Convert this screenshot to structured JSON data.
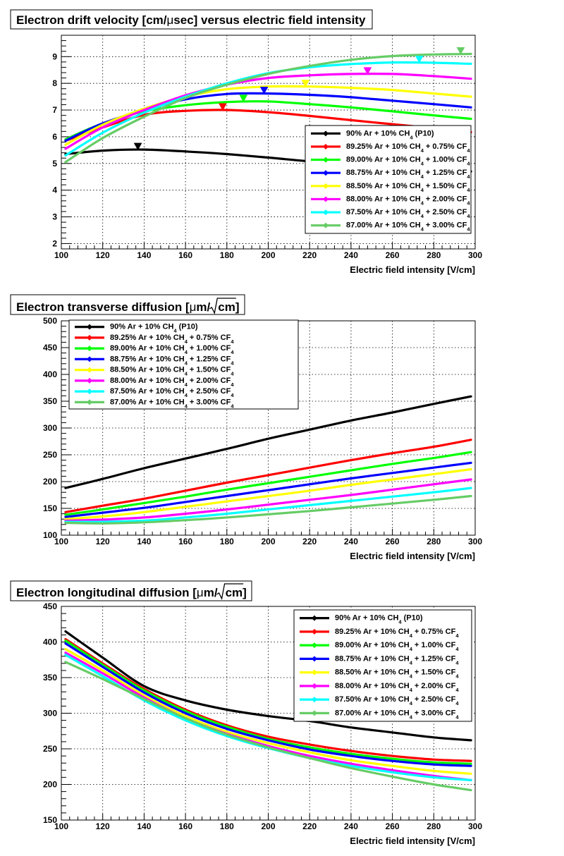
{
  "chart_data": [
    {
      "type": "line",
      "title": "Electron drift velocity [cm/μsec] versus electric field intensity",
      "title_parts": [
        "Electron drift velocity [cm/",
        "μ",
        "sec] versus electric field intensity"
      ],
      "xlabel": "Electric field intensity [V/cm]",
      "ylabel": "",
      "xlim": [
        100,
        300
      ],
      "ylim": [
        1.8,
        9.8
      ],
      "x_ticks": [
        100,
        120,
        140,
        160,
        180,
        200,
        220,
        240,
        260,
        280,
        300
      ],
      "y_ticks": [
        2,
        3,
        4,
        5,
        6,
        7,
        8,
        9
      ],
      "grid": true,
      "legend_position": "bottom-right",
      "x": [
        102,
        120,
        140,
        160,
        180,
        200,
        220,
        240,
        260,
        280,
        298
      ],
      "series": [
        {
          "name": "90% Ar + 10% CH4 (P10)",
          "color": "#000000",
          "values": [
            5.35,
            5.48,
            5.52,
            5.45,
            5.35,
            5.22,
            5.08,
            4.98,
            4.88,
            4.78,
            4.7
          ],
          "peak": [
            137,
            5.52
          ]
        },
        {
          "name": "89.25% Ar + 10% CH4 + 0.75% CF4",
          "color": "#ff0000",
          "values": [
            5.85,
            6.35,
            6.82,
            6.97,
            7.0,
            6.92,
            6.78,
            6.62,
            6.47,
            6.32,
            6.17
          ],
          "peak": [
            178,
            7.0
          ]
        },
        {
          "name": "89.00% Ar + 10% CH4 + 1.00% CF4",
          "color": "#00ff00",
          "values": [
            5.9,
            6.5,
            6.95,
            7.18,
            7.3,
            7.32,
            7.22,
            7.1,
            6.95,
            6.8,
            6.67
          ],
          "peak": [
            188,
            7.32
          ]
        },
        {
          "name": "88.75% Ar + 10% CH4 + 1.25% CF4",
          "color": "#0000ff",
          "values": [
            5.85,
            6.5,
            7.0,
            7.4,
            7.6,
            7.62,
            7.57,
            7.48,
            7.35,
            7.22,
            7.1
          ],
          "peak": [
            198,
            7.62
          ]
        },
        {
          "name": "88.50% Ar + 10% CH4 + 1.50% CF4",
          "color": "#ffff00",
          "values": [
            5.7,
            6.45,
            7.05,
            7.5,
            7.78,
            7.88,
            7.88,
            7.83,
            7.75,
            7.62,
            7.5
          ],
          "peak": [
            218,
            7.88
          ]
        },
        {
          "name": "88.00% Ar + 10% CH4 + 2.00% CF4",
          "color": "#ff00ff",
          "values": [
            5.55,
            6.35,
            7.0,
            7.55,
            7.95,
            8.2,
            8.3,
            8.35,
            8.35,
            8.27,
            8.17
          ],
          "peak": [
            248,
            8.35
          ]
        },
        {
          "name": "87.50% Ar + 10% CH4 + 2.50% CF4",
          "color": "#00ffff",
          "values": [
            5.3,
            6.15,
            6.9,
            7.5,
            8.0,
            8.38,
            8.6,
            8.72,
            8.78,
            8.77,
            8.73
          ],
          "peak": [
            273,
            8.78
          ]
        },
        {
          "name": "87.00% Ar + 10% CH4 + 3.00% CF4",
          "color": "#66cc66",
          "values": [
            5.05,
            5.95,
            6.75,
            7.45,
            7.95,
            8.35,
            8.65,
            8.88,
            9.02,
            9.08,
            9.1
          ],
          "peak": [
            293,
            9.1
          ]
        }
      ]
    },
    {
      "type": "line",
      "title": "Electron transverse diffusion [μm/√cm]",
      "title_parts": [
        "Electron transverse diffusion [",
        "μ",
        "m/",
        "cm",
        "]"
      ],
      "xlabel": "Electric field intensity [V/cm]",
      "ylabel": "",
      "xlim": [
        100,
        300
      ],
      "ylim": [
        100,
        500
      ],
      "x_ticks": [
        100,
        120,
        140,
        160,
        180,
        200,
        220,
        240,
        260,
        280,
        300
      ],
      "y_ticks": [
        100,
        150,
        200,
        250,
        300,
        350,
        400,
        450,
        500
      ],
      "grid": true,
      "legend_position": "top-left",
      "x": [
        102,
        120,
        140,
        160,
        180,
        200,
        220,
        240,
        260,
        280,
        298
      ],
      "series": [
        {
          "name": "90% Ar + 10% CH4 (P10)",
          "color": "#000000",
          "values": [
            188,
            205,
            225,
            243,
            261,
            280,
            297,
            314,
            329,
            345,
            359
          ]
        },
        {
          "name": "89.25% Ar + 10% CH4 + 0.75% CF4",
          "color": "#ff0000",
          "values": [
            143,
            155,
            168,
            183,
            198,
            212,
            226,
            240,
            253,
            265,
            278
          ]
        },
        {
          "name": "89.00% Ar + 10% CH4 + 1.00% CF4",
          "color": "#00ff00",
          "values": [
            138,
            148,
            160,
            172,
            185,
            197,
            209,
            221,
            233,
            244,
            255
          ]
        },
        {
          "name": "88.75% Ar + 10% CH4 + 1.25% CF4",
          "color": "#0000ff",
          "values": [
            134,
            142,
            151,
            162,
            173,
            184,
            195,
            206,
            216,
            226,
            235
          ]
        },
        {
          "name": "88.50% Ar + 10% CH4 + 1.50% CF4",
          "color": "#ffff00",
          "values": [
            130,
            135,
            143,
            153,
            163,
            173,
            183,
            194,
            204,
            214,
            223
          ]
        },
        {
          "name": "88.00% Ar + 10% CH4 + 2.00% CF4",
          "color": "#ff00ff",
          "values": [
            127,
            129,
            133,
            140,
            148,
            157,
            166,
            175,
            185,
            195,
            204
          ]
        },
        {
          "name": "87.50% Ar + 10% CH4 + 2.50% CF4",
          "color": "#00ffff",
          "values": [
            125,
            125,
            127,
            133,
            140,
            148,
            156,
            164,
            172,
            180,
            188
          ]
        },
        {
          "name": "87.00% Ar + 10% CH4 + 3.00% CF4",
          "color": "#66cc66",
          "values": [
            123,
            122,
            124,
            128,
            133,
            139,
            145,
            152,
            159,
            166,
            173
          ]
        }
      ]
    },
    {
      "type": "line",
      "title": "Electron longitudinal diffusion [μm/√cm]",
      "title_parts": [
        "Electron longitudinal diffusion [",
        "μ",
        "m/",
        "cm",
        "]"
      ],
      "xlabel": "Electric field intensity [V/cm]",
      "ylabel": "",
      "xlim": [
        100,
        300
      ],
      "ylim": [
        150,
        450
      ],
      "x_ticks": [
        100,
        120,
        140,
        160,
        180,
        200,
        220,
        240,
        260,
        280,
        300
      ],
      "y_ticks": [
        150,
        200,
        250,
        300,
        350,
        400,
        450
      ],
      "grid": true,
      "legend_position": "top-right",
      "x": [
        102,
        120,
        140,
        160,
        180,
        200,
        220,
        240,
        260,
        280,
        298
      ],
      "series": [
        {
          "name": "90% Ar + 10% CH4 (P10)",
          "color": "#000000",
          "values": [
            415,
            378,
            338,
            318,
            305,
            296,
            289,
            280,
            273,
            266,
            262
          ]
        },
        {
          "name": "89.25% Ar + 10% CH4 + 0.75% CF4",
          "color": "#ff0000",
          "values": [
            404,
            370,
            334,
            305,
            283,
            267,
            256,
            247,
            240,
            235,
            233
          ]
        },
        {
          "name": "89.00% Ar + 10% CH4 + 1.00% CF4",
          "color": "#00ff00",
          "values": [
            402,
            368,
            332,
            303,
            281,
            264,
            252,
            243,
            236,
            231,
            229
          ]
        },
        {
          "name": "88.75% Ar + 10% CH4 + 1.25% CF4",
          "color": "#0000ff",
          "values": [
            398,
            365,
            329,
            300,
            278,
            262,
            249,
            240,
            233,
            228,
            226
          ]
        },
        {
          "name": "88.50% Ar + 10% CH4 + 1.50% CF4",
          "color": "#ffff00",
          "values": [
            390,
            360,
            325,
            296,
            274,
            258,
            245,
            234,
            226,
            219,
            215
          ]
        },
        {
          "name": "88.00% Ar + 10% CH4 + 2.00% CF4",
          "color": "#ff00ff",
          "values": [
            385,
            356,
            322,
            293,
            271,
            254,
            240,
            229,
            220,
            212,
            206
          ]
        },
        {
          "name": "87.50% Ar + 10% CH4 + 2.50% CF4",
          "color": "#00ffff",
          "values": [
            382,
            352,
            318,
            290,
            268,
            251,
            237,
            226,
            217,
            210,
            206
          ]
        },
        {
          "name": "87.00% Ar + 10% CH4 + 3.00% CF4",
          "color": "#66cc66",
          "values": [
            372,
            348,
            320,
            293,
            270,
            252,
            237,
            223,
            211,
            200,
            192
          ]
        }
      ]
    }
  ]
}
